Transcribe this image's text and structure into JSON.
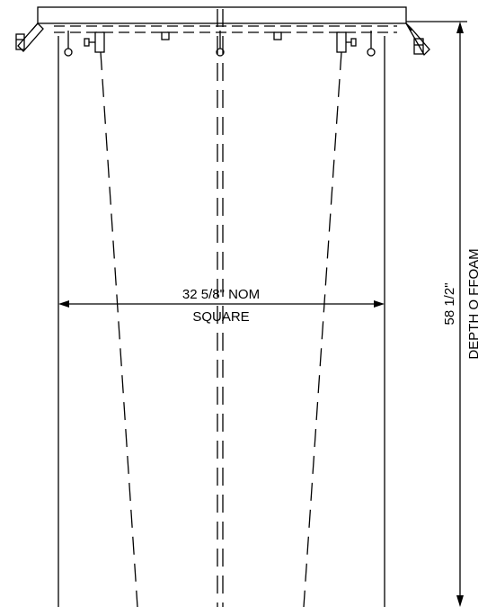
{
  "dimensions": {
    "width_label_line1": "32 5/8\" NOM",
    "width_label_line2": "SQUARE",
    "depth_label_line1": "58 1/2\"",
    "depth_label_line2": "DEPTH O FFOAM"
  },
  "colors": {
    "line": "#000000",
    "background": "#ffffff"
  }
}
